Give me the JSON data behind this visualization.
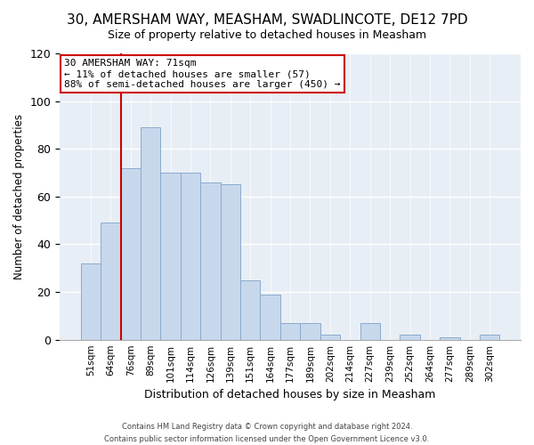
{
  "title": "30, AMERSHAM WAY, MEASHAM, SWADLINCOTE, DE12 7PD",
  "subtitle": "Size of property relative to detached houses in Measham",
  "xlabel": "Distribution of detached houses by size in Measham",
  "ylabel": "Number of detached properties",
  "bar_labels": [
    "51sqm",
    "64sqm",
    "76sqm",
    "89sqm",
    "101sqm",
    "114sqm",
    "126sqm",
    "139sqm",
    "151sqm",
    "164sqm",
    "177sqm",
    "189sqm",
    "202sqm",
    "214sqm",
    "227sqm",
    "239sqm",
    "252sqm",
    "264sqm",
    "277sqm",
    "289sqm",
    "302sqm"
  ],
  "bar_values": [
    32,
    49,
    72,
    89,
    70,
    70,
    66,
    65,
    25,
    19,
    7,
    7,
    2,
    0,
    7,
    0,
    2,
    0,
    1,
    0,
    2
  ],
  "bar_color": "#c8d8ec",
  "bar_edge_color": "#8aabcc",
  "vline_x": 1.5,
  "vline_color": "#cc0000",
  "ylim": [
    0,
    120
  ],
  "yticks": [
    0,
    20,
    40,
    60,
    80,
    100,
    120
  ],
  "annotation_title": "30 AMERSHAM WAY: 71sqm",
  "annotation_line1": "← 11% of detached houses are smaller (57)",
  "annotation_line2": "88% of semi-detached houses are larger (450) →",
  "annotation_box_facecolor": "#ffffff",
  "annotation_box_edgecolor": "#cc0000",
  "footer_line1": "Contains HM Land Registry data © Crown copyright and database right 2024.",
  "footer_line2": "Contains public sector information licensed under the Open Government Licence v3.0.",
  "fig_facecolor": "#ffffff",
  "plot_facecolor": "#e8eef5",
  "grid_color": "#ffffff",
  "title_fontsize": 11,
  "subtitle_fontsize": 9
}
